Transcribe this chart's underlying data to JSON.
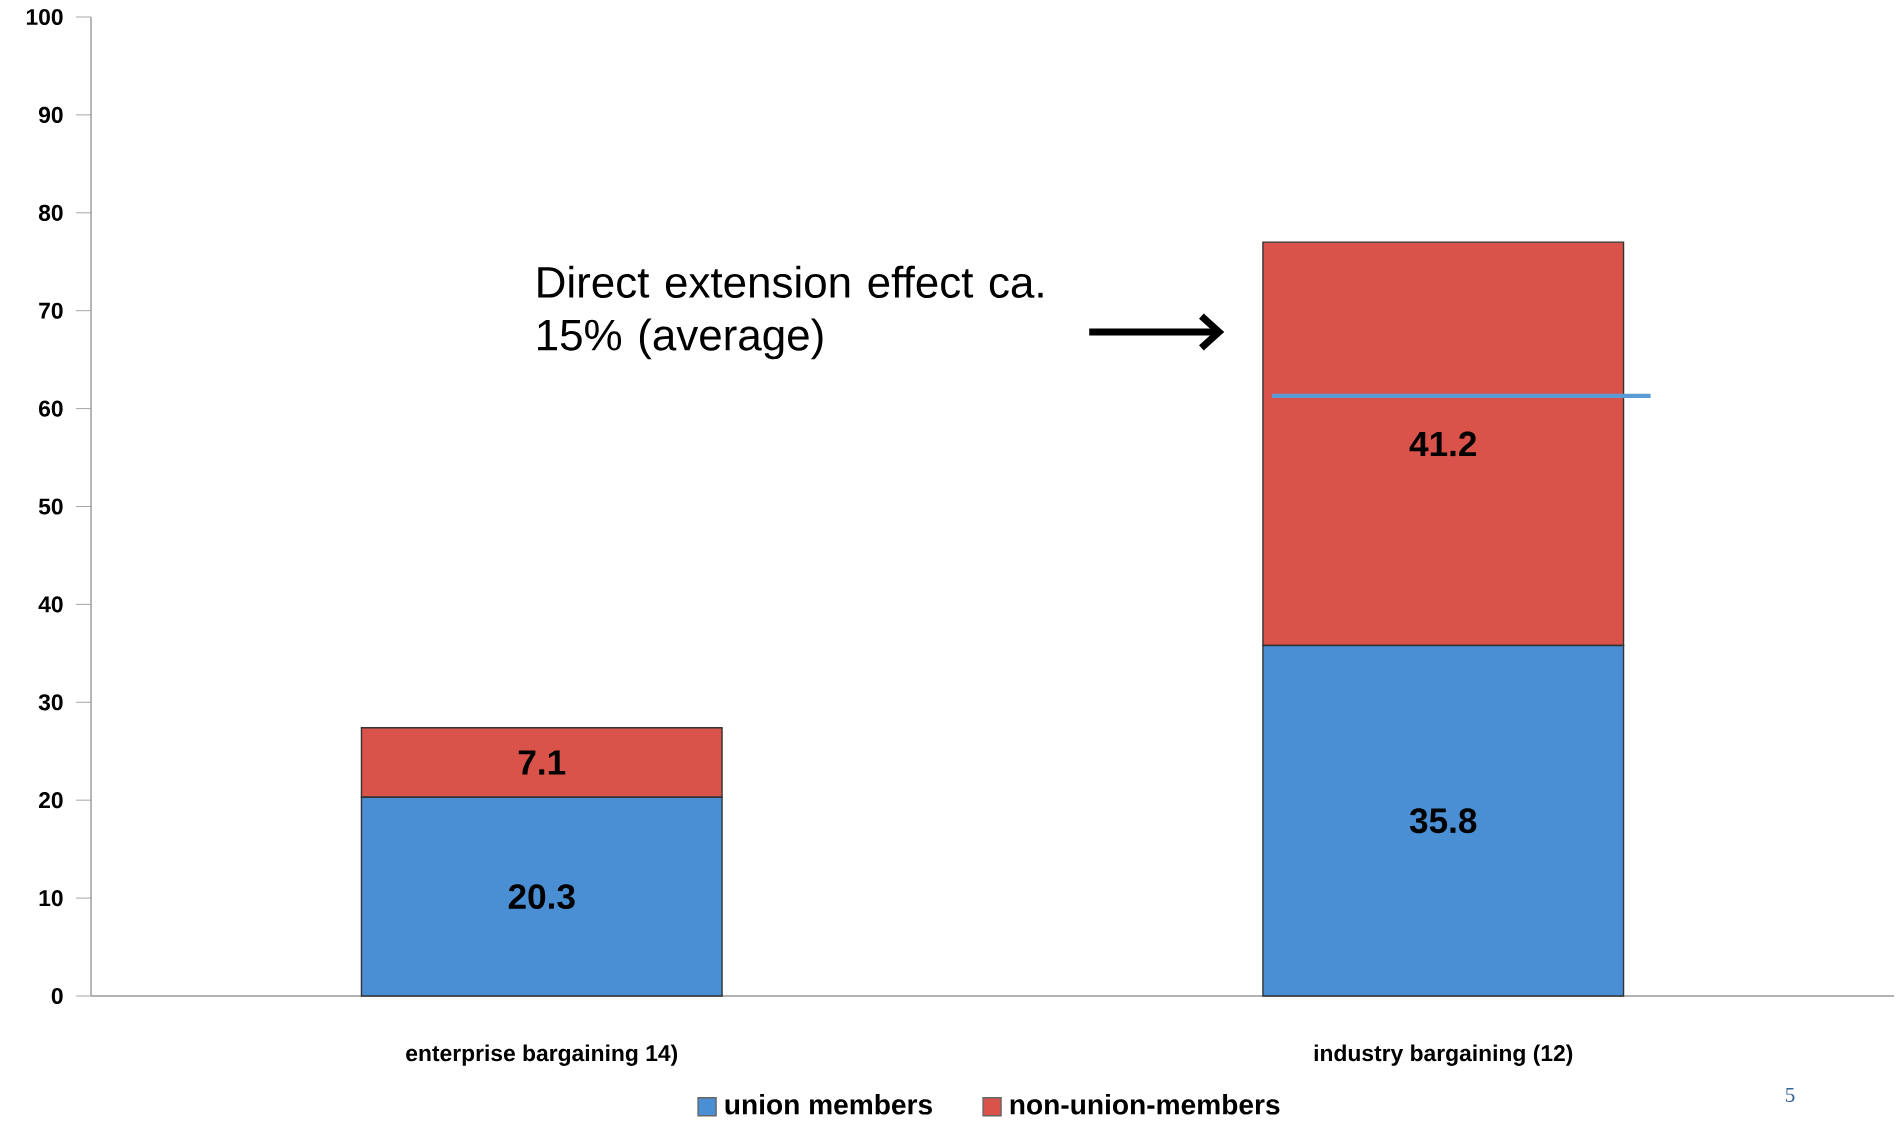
{
  "chart_data": {
    "type": "bar",
    "stacked": true,
    "categories": [
      "enterprise bargaining 14)",
      "industry bargaining (12)"
    ],
    "series": [
      {
        "name": "union members",
        "color": "#4a8fd4",
        "values": [
          20.3,
          35.8
        ]
      },
      {
        "name": "non-union-members",
        "color": "#d9534a",
        "values": [
          7.1,
          41.2
        ]
      }
    ],
    "ylim": [
      0,
      100
    ],
    "yticks": [
      0,
      10,
      20,
      30,
      40,
      50,
      60,
      70,
      80,
      90,
      100
    ],
    "grid": false,
    "legend": "bottom",
    "data_labels": true,
    "ref_lines": [
      {
        "axis": "y",
        "value": 61.3,
        "color": "#5b9bd5"
      }
    ],
    "annotations": [
      "Direct extension effect ca. 15% (average)",
      "5"
    ]
  }
}
